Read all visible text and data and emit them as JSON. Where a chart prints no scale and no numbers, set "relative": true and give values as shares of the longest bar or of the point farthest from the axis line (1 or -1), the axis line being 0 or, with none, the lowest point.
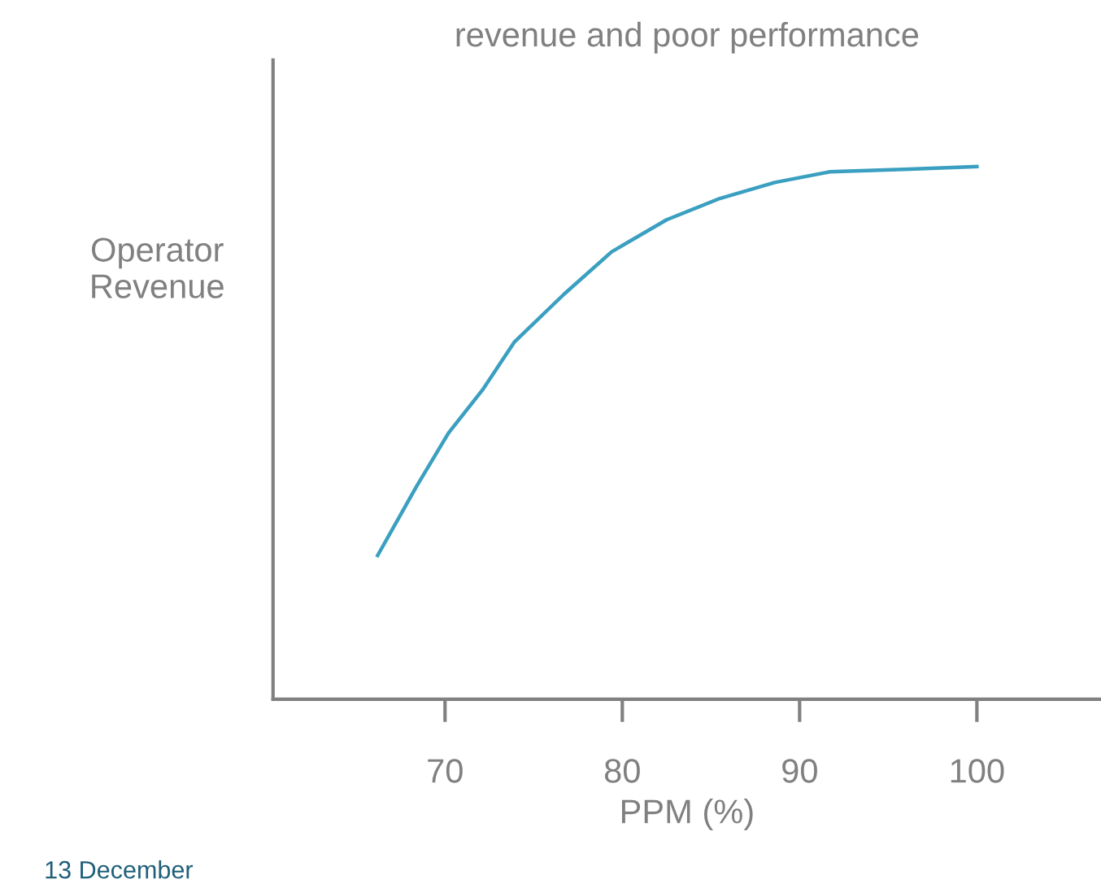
{
  "chart_data": {
    "type": "line",
    "relative": true,
    "title": "revenue and poor performance",
    "xlabel": "PPM (%)",
    "ylabel": "Operator\nRevenue",
    "annotations": [
      "13 December"
    ],
    "xlim": [
      60.3,
      107
    ],
    "xticks": [
      70,
      80,
      90,
      100
    ],
    "grid": false,
    "marker": "none",
    "line_style": "solid",
    "series": [
      {
        "color": "#3a9fc0",
        "x": [
          66.2,
          68.4,
          70.2,
          72.1,
          73.9,
          76.7,
          79.4,
          82.5,
          85.5,
          88.6,
          91.7,
          96.2,
          100
        ],
        "values": [
          0.27,
          0.4,
          0.5,
          0.58,
          0.67,
          0.76,
          0.84,
          0.9,
          0.94,
          0.97,
          0.99,
          0.995,
          1
        ]
      }
    ]
  }
}
